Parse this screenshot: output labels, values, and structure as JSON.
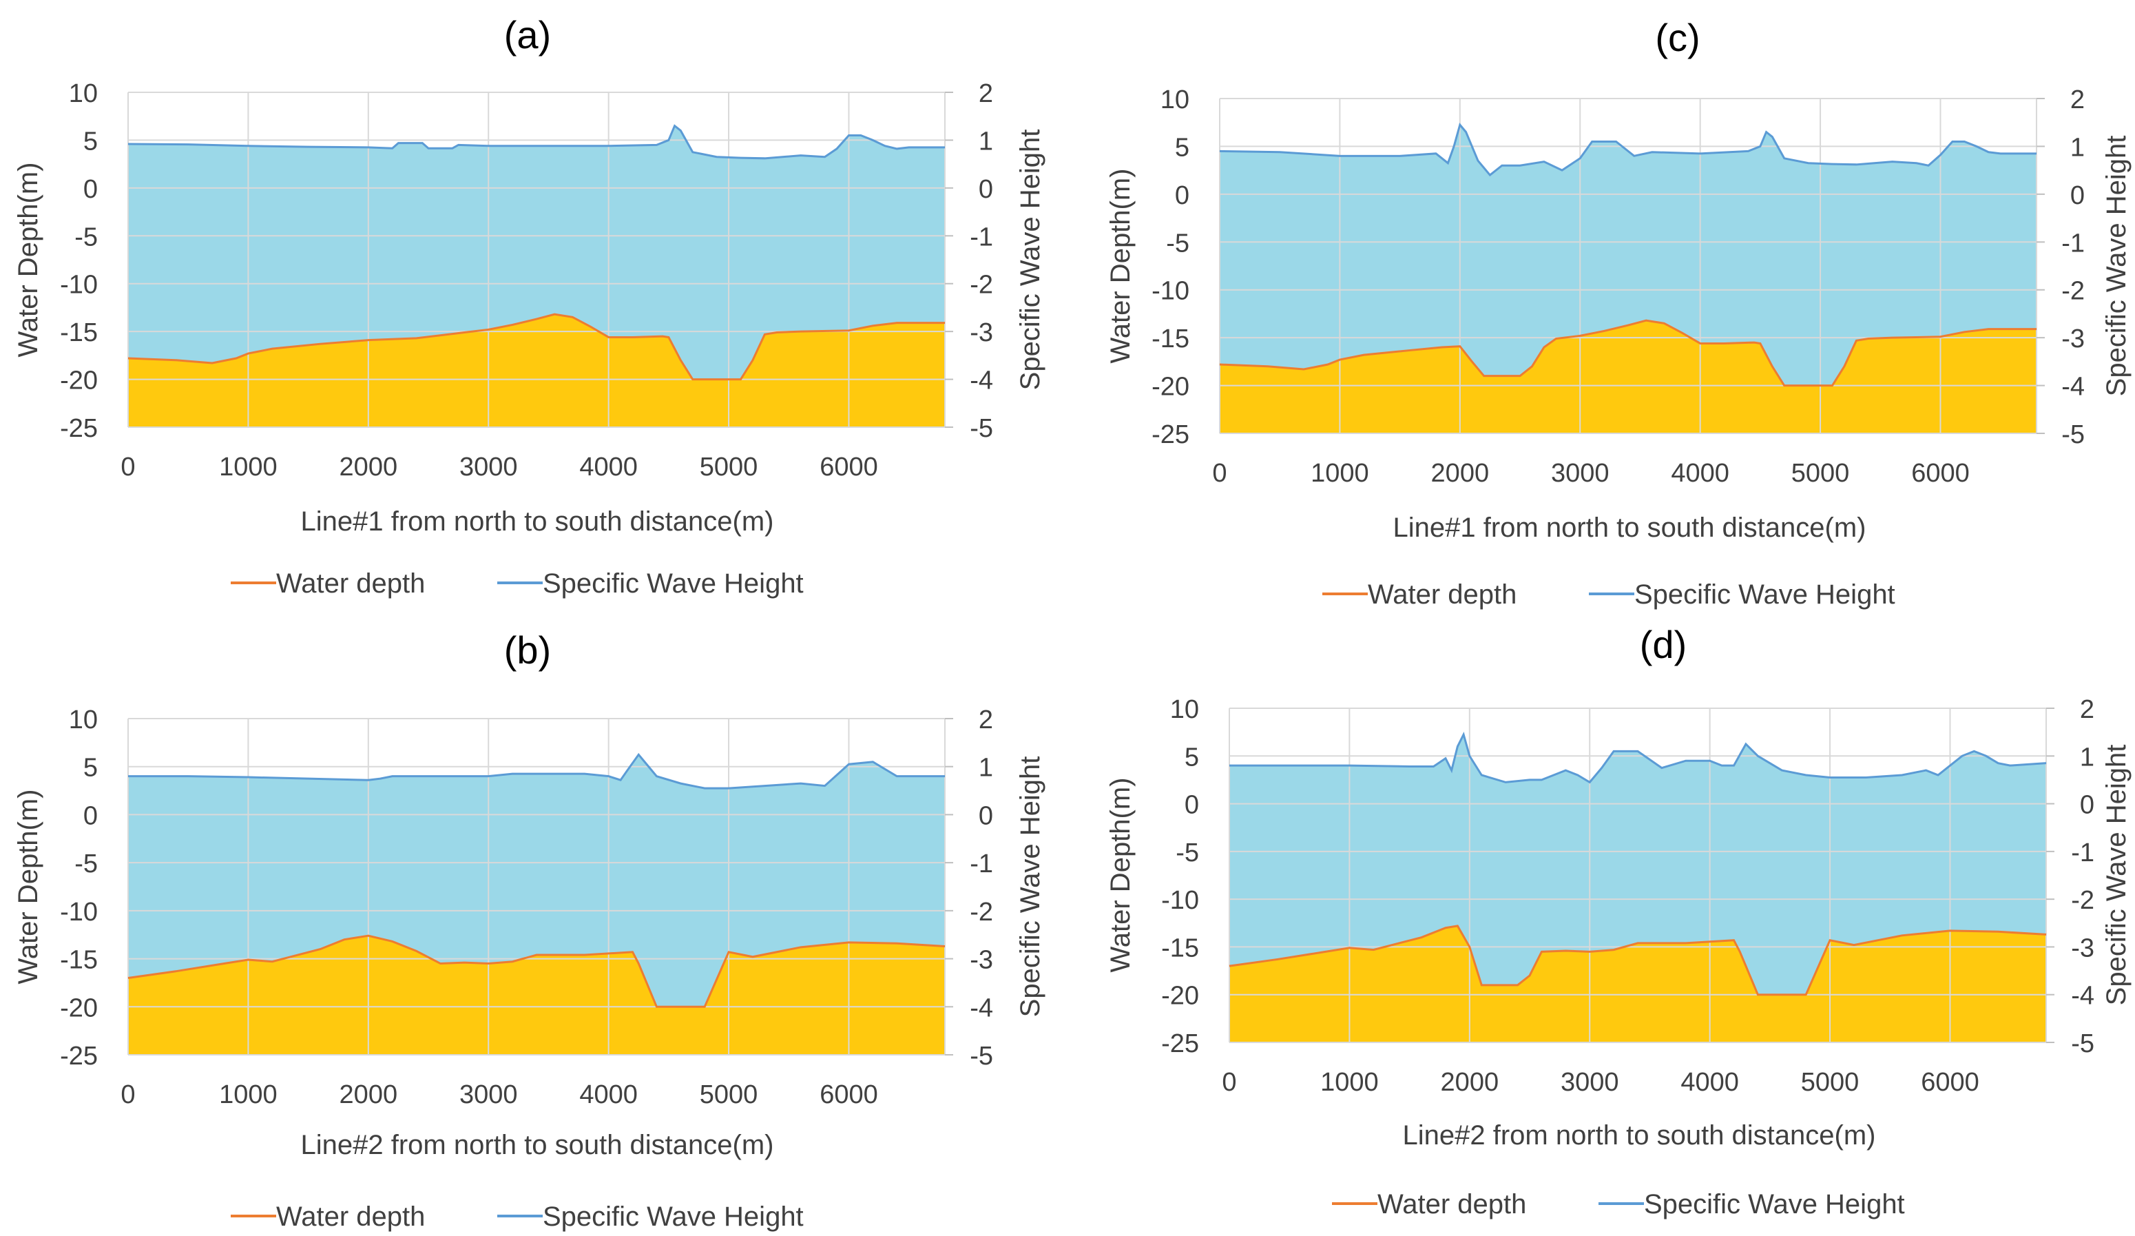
{
  "chart_data": [
    {
      "type": "area",
      "panel_label": "(a)",
      "xlabel": "Line#1 from north to south distance(m)",
      "ylabel": "Water Depth(m)",
      "y2label": "Specific Wave Height",
      "xlim": [
        0,
        6800
      ],
      "xticks": [
        0,
        1000,
        2000,
        3000,
        4000,
        5000,
        6000
      ],
      "ylim": [
        -25,
        10
      ],
      "yticks": [
        10,
        5,
        0,
        -5,
        -10,
        -15,
        -20,
        -25
      ],
      "y2lim": [
        -5,
        2
      ],
      "y2ticks": [
        2,
        1,
        0,
        -1,
        -2,
        -3,
        -4,
        -5
      ],
      "legend": [
        "Water depth",
        "Specific Wave Height"
      ],
      "colors": {
        "depth_line": "#ED7D31",
        "wave_line": "#5B9BD5",
        "water_fill": "#9BD8E8",
        "seabed_fill": "#FFC90E",
        "grid": "#D9D9D9"
      },
      "series": [
        {
          "name": "Water depth",
          "axis": "left",
          "x": [
            0,
            400,
            700,
            900,
            1000,
            1200,
            1600,
            2000,
            2400,
            2800,
            3000,
            3200,
            3400,
            3550,
            3700,
            3850,
            4000,
            4200,
            4450,
            4500,
            4600,
            4700,
            5000,
            5100,
            5200,
            5300,
            5400,
            5600,
            6000,
            6200,
            6400,
            6800
          ],
          "values": [
            -17.8,
            -18,
            -18.3,
            -17.8,
            -17.3,
            -16.8,
            -16.3,
            -15.9,
            -15.7,
            -15.1,
            -14.8,
            -14.3,
            -13.7,
            -13.2,
            -13.5,
            -14.5,
            -15.6,
            -15.6,
            -15.5,
            -15.6,
            -18,
            -20,
            -20,
            -20,
            -18,
            -15.3,
            -15.1,
            -15,
            -14.9,
            -14.4,
            -14.1,
            -14.1
          ]
        },
        {
          "name": "Specific Wave Height",
          "axis": "right",
          "x": [
            0,
            500,
            1000,
            1500,
            2000,
            2200,
            2250,
            2450,
            2500,
            2700,
            2750,
            3000,
            3500,
            4000,
            4400,
            4500,
            4550,
            4600,
            4700,
            4900,
            5100,
            5300,
            5600,
            5800,
            5900,
            6000,
            6100,
            6200,
            6300,
            6400,
            6500,
            6800
          ],
          "values": [
            0.92,
            0.91,
            0.88,
            0.86,
            0.85,
            0.83,
            0.94,
            0.94,
            0.83,
            0.83,
            0.9,
            0.88,
            0.88,
            0.88,
            0.9,
            1.0,
            1.3,
            1.2,
            0.75,
            0.65,
            0.63,
            0.62,
            0.68,
            0.65,
            0.82,
            1.1,
            1.1,
            1.0,
            0.88,
            0.82,
            0.85,
            0.85
          ]
        }
      ]
    },
    {
      "type": "area",
      "panel_label": "(b)",
      "xlabel": "Line#2 from north to south distance(m)",
      "ylabel": "Water Depth(m)",
      "y2label": "Specific Wave Height",
      "xlim": [
        0,
        6800
      ],
      "xticks": [
        0,
        1000,
        2000,
        3000,
        4000,
        5000,
        6000
      ],
      "ylim": [
        -25,
        10
      ],
      "yticks": [
        10,
        5,
        0,
        -5,
        -10,
        -15,
        -20,
        -25
      ],
      "y2lim": [
        -5,
        2
      ],
      "y2ticks": [
        2,
        1,
        0,
        -1,
        -2,
        -3,
        -4,
        -5
      ],
      "legend": [
        "Water depth",
        "Specific Wave Height"
      ],
      "colors": {
        "depth_line": "#ED7D31",
        "wave_line": "#5B9BD5",
        "water_fill": "#9BD8E8",
        "seabed_fill": "#FFC90E",
        "grid": "#D9D9D9"
      },
      "series": [
        {
          "name": "Water depth",
          "axis": "left",
          "x": [
            0,
            400,
            800,
            1000,
            1200,
            1600,
            1800,
            2000,
            2200,
            2400,
            2600,
            2800,
            3000,
            3200,
            3400,
            3800,
            4200,
            4250,
            4400,
            4800,
            5000,
            5200,
            5600,
            6000,
            6400,
            6800
          ],
          "values": [
            -17,
            -16.3,
            -15.5,
            -15.1,
            -15.3,
            -14,
            -13,
            -12.6,
            -13.2,
            -14.2,
            -15.5,
            -15.4,
            -15.5,
            -15.3,
            -14.6,
            -14.6,
            -14.3,
            -15.5,
            -20,
            -20,
            -14.3,
            -14.8,
            -13.8,
            -13.3,
            -13.4,
            -13.7
          ]
        },
        {
          "name": "Specific Wave Height",
          "axis": "right",
          "x": [
            0,
            500,
            1000,
            1500,
            2000,
            2100,
            2200,
            2500,
            3000,
            3200,
            3500,
            3800,
            4000,
            4100,
            4150,
            4250,
            4300,
            4400,
            4600,
            4800,
            5000,
            5300,
            5600,
            5800,
            6000,
            6200,
            6400,
            6800
          ],
          "values": [
            0.8,
            0.8,
            0.78,
            0.75,
            0.72,
            0.75,
            0.8,
            0.8,
            0.8,
            0.85,
            0.85,
            0.85,
            0.8,
            0.72,
            0.9,
            1.25,
            1.1,
            0.8,
            0.65,
            0.55,
            0.55,
            0.6,
            0.65,
            0.6,
            1.05,
            1.1,
            0.8,
            0.8
          ]
        }
      ]
    },
    {
      "type": "area",
      "panel_label": "(c)",
      "xlabel": "Line#1 from north to south distance(m)",
      "ylabel": "Water Depth(m)",
      "y2label": "Specific Wave Height",
      "xlim": [
        0,
        6800
      ],
      "xticks": [
        0,
        1000,
        2000,
        3000,
        4000,
        5000,
        6000
      ],
      "ylim": [
        -25,
        10
      ],
      "yticks": [
        10,
        5,
        0,
        -5,
        -10,
        -15,
        -20,
        -25
      ],
      "y2lim": [
        -5,
        2
      ],
      "y2ticks": [
        2,
        1,
        0,
        -1,
        -2,
        -3,
        -4,
        -5
      ],
      "legend": [
        "Water depth",
        "Specific Wave Height"
      ],
      "colors": {
        "depth_line": "#ED7D31",
        "wave_line": "#5B9BD5",
        "water_fill": "#9BD8E8",
        "seabed_fill": "#FFC90E",
        "grid": "#D9D9D9"
      },
      "series": [
        {
          "name": "Water depth",
          "axis": "left",
          "x": [
            0,
            400,
            700,
            900,
            1000,
            1200,
            1600,
            1850,
            2000,
            2100,
            2200,
            2500,
            2600,
            2700,
            2800,
            3000,
            3200,
            3400,
            3550,
            3700,
            3850,
            4000,
            4200,
            4450,
            4500,
            4600,
            4700,
            5000,
            5100,
            5200,
            5300,
            5400,
            5600,
            6000,
            6200,
            6400,
            6800
          ],
          "values": [
            -17.8,
            -18,
            -18.3,
            -17.8,
            -17.3,
            -16.8,
            -16.3,
            -16,
            -15.9,
            -17.5,
            -19,
            -19,
            -18,
            -16,
            -15.1,
            -14.8,
            -14.3,
            -13.7,
            -13.2,
            -13.5,
            -14.5,
            -15.6,
            -15.6,
            -15.5,
            -15.6,
            -18,
            -20,
            -20,
            -20,
            -18,
            -15.3,
            -15.1,
            -15,
            -14.9,
            -14.4,
            -14.1,
            -14.1
          ]
        },
        {
          "name": "Specific Wave Height",
          "axis": "right",
          "x": [
            0,
            500,
            1000,
            1500,
            1800,
            1900,
            1950,
            2000,
            2050,
            2150,
            2250,
            2350,
            2500,
            2700,
            2850,
            3000,
            3100,
            3300,
            3450,
            3600,
            4000,
            4400,
            4500,
            4550,
            4600,
            4700,
            4900,
            5100,
            5300,
            5600,
            5800,
            5900,
            6000,
            6100,
            6200,
            6300,
            6400,
            6500,
            6800
          ],
          "values": [
            0.9,
            0.88,
            0.8,
            0.8,
            0.85,
            0.65,
            1.0,
            1.45,
            1.3,
            0.7,
            0.4,
            0.6,
            0.6,
            0.68,
            0.5,
            0.75,
            1.1,
            1.1,
            0.8,
            0.88,
            0.85,
            0.9,
            1.0,
            1.3,
            1.2,
            0.75,
            0.65,
            0.63,
            0.62,
            0.68,
            0.65,
            0.6,
            0.82,
            1.1,
            1.1,
            1.0,
            0.88,
            0.85,
            0.85
          ]
        }
      ]
    },
    {
      "type": "area",
      "panel_label": "(d)",
      "xlabel": "Line#2 from north to south distance(m)",
      "ylabel": "Water Depth(m)",
      "y2label": "Specific Wave Height",
      "xlim": [
        0,
        6800
      ],
      "xticks": [
        0,
        1000,
        2000,
        3000,
        4000,
        5000,
        6000
      ],
      "ylim": [
        -25,
        10
      ],
      "yticks": [
        10,
        5,
        0,
        -5,
        -10,
        -15,
        -20,
        -25
      ],
      "y2lim": [
        -5,
        2
      ],
      "y2ticks": [
        2,
        1,
        0,
        -1,
        -2,
        -3,
        -4,
        -5
      ],
      "legend": [
        "Water depth",
        "Specific Wave Height"
      ],
      "colors": {
        "depth_line": "#ED7D31",
        "wave_line": "#5B9BD5",
        "water_fill": "#9BD8E8",
        "seabed_fill": "#FFC90E",
        "grid": "#D9D9D9"
      },
      "series": [
        {
          "name": "Water depth",
          "axis": "left",
          "x": [
            0,
            400,
            800,
            1000,
            1200,
            1600,
            1800,
            1900,
            2000,
            2100,
            2400,
            2500,
            2600,
            2800,
            3000,
            3200,
            3400,
            3800,
            4200,
            4250,
            4400,
            4800,
            5000,
            5200,
            5600,
            6000,
            6400,
            6800
          ],
          "values": [
            -17,
            -16.3,
            -15.5,
            -15.1,
            -15.3,
            -14,
            -13,
            -12.8,
            -15,
            -19,
            -19,
            -18,
            -15.5,
            -15.4,
            -15.5,
            -15.3,
            -14.6,
            -14.6,
            -14.3,
            -15.5,
            -20,
            -20,
            -14.3,
            -14.8,
            -13.8,
            -13.3,
            -13.4,
            -13.7
          ]
        },
        {
          "name": "Specific Wave Height",
          "axis": "right",
          "x": [
            0,
            500,
            1000,
            1500,
            1700,
            1800,
            1850,
            1900,
            1950,
            2000,
            2100,
            2300,
            2500,
            2600,
            2700,
            2800,
            2900,
            3000,
            3100,
            3200,
            3400,
            3600,
            3800,
            4000,
            4100,
            4200,
            4300,
            4400,
            4600,
            4800,
            5000,
            5300,
            5600,
            5800,
            5900,
            6000,
            6100,
            6200,
            6300,
            6400,
            6500,
            6800
          ],
          "values": [
            0.8,
            0.8,
            0.8,
            0.78,
            0.78,
            0.95,
            0.7,
            1.2,
            1.45,
            1.0,
            0.6,
            0.45,
            0.5,
            0.5,
            0.6,
            0.7,
            0.6,
            0.45,
            0.75,
            1.1,
            1.1,
            0.75,
            0.9,
            0.9,
            0.8,
            0.8,
            1.25,
            1.0,
            0.7,
            0.6,
            0.55,
            0.55,
            0.6,
            0.7,
            0.6,
            0.8,
            1.0,
            1.1,
            1.0,
            0.85,
            0.8,
            0.85
          ]
        }
      ]
    }
  ]
}
